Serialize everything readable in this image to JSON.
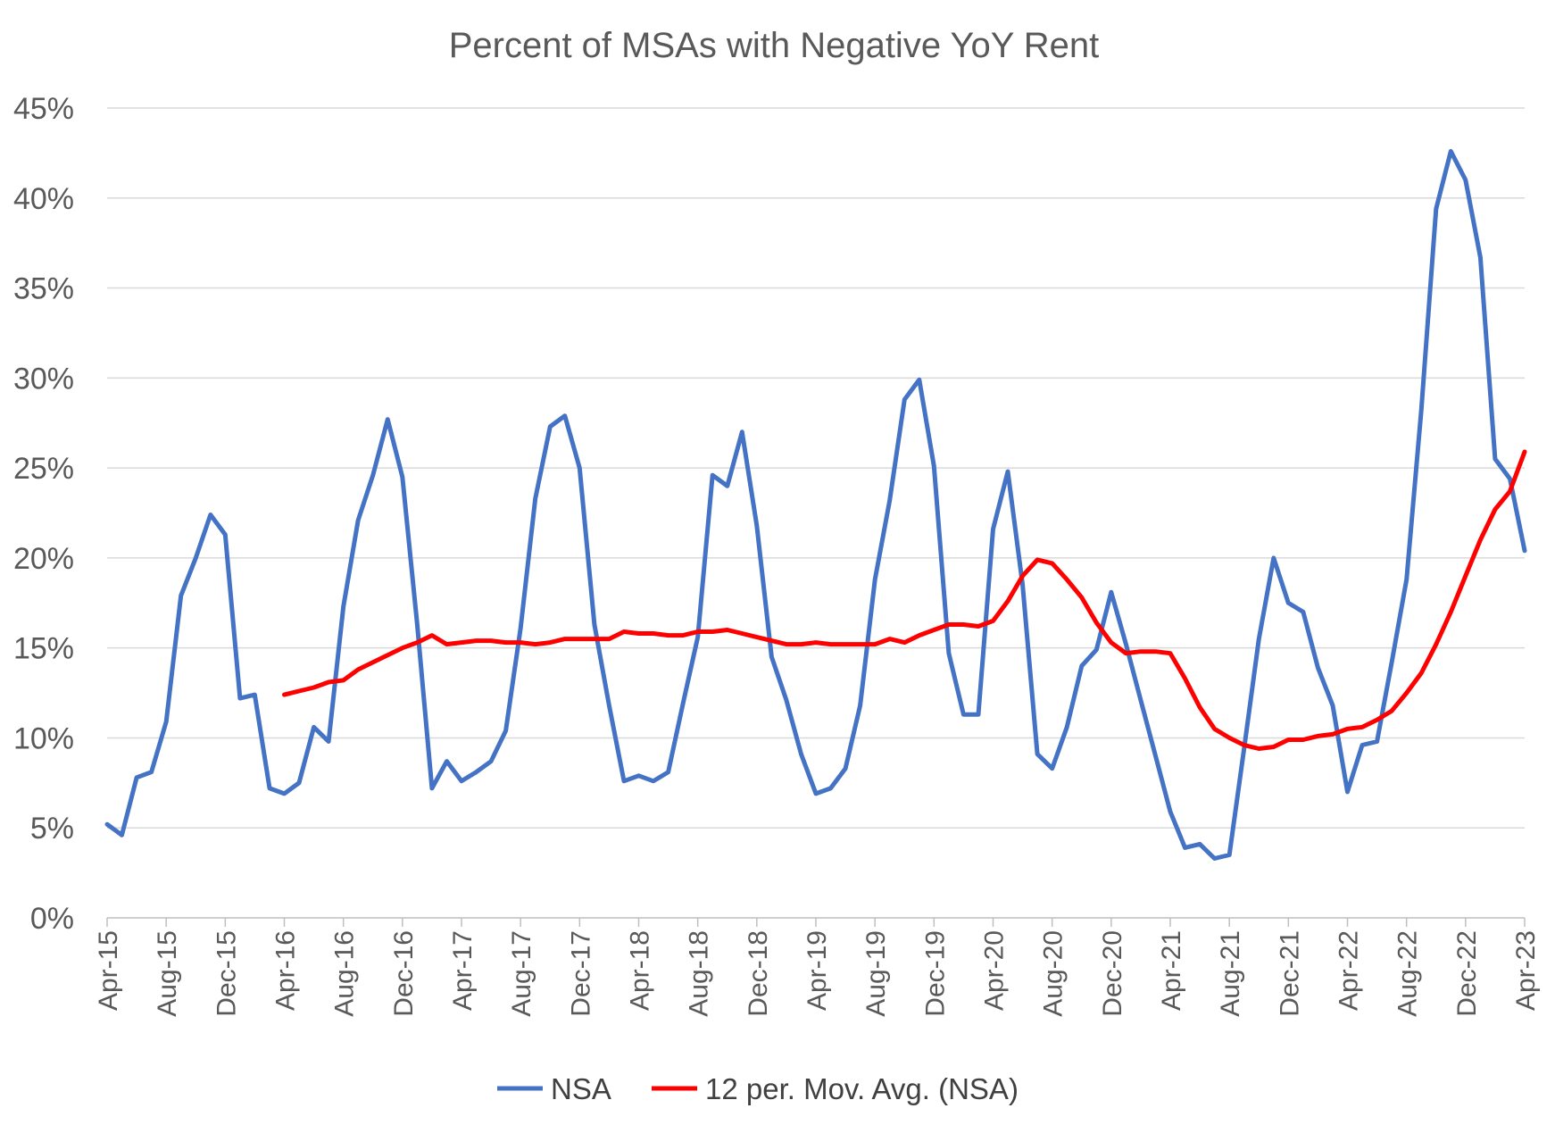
{
  "chart_data": {
    "type": "line",
    "title": "Percent of MSAs with Negative YoY Rent",
    "xlabel": "",
    "ylabel": "",
    "ylim": [
      0,
      45
    ],
    "y_ticks": [
      "0%",
      "5%",
      "10%",
      "15%",
      "20%",
      "25%",
      "30%",
      "35%",
      "40%",
      "45%"
    ],
    "x_tick_labels": [
      "Apr-15",
      "Aug-15",
      "Dec-15",
      "Apr-16",
      "Aug-16",
      "Dec-16",
      "Apr-17",
      "Aug-17",
      "Dec-17",
      "Apr-18",
      "Aug-18",
      "Dec-18",
      "Apr-19",
      "Aug-19",
      "Dec-19",
      "Apr-20",
      "Aug-20",
      "Dec-20",
      "Apr-21",
      "Aug-21",
      "Dec-21",
      "Apr-22",
      "Aug-22",
      "Dec-22",
      "Apr-23"
    ],
    "grid": true,
    "legend_position": "bottom",
    "categories": [
      "Apr-15",
      "May-15",
      "Jun-15",
      "Jul-15",
      "Aug-15",
      "Sep-15",
      "Oct-15",
      "Nov-15",
      "Dec-15",
      "Jan-16",
      "Feb-16",
      "Mar-16",
      "Apr-16",
      "May-16",
      "Jun-16",
      "Jul-16",
      "Aug-16",
      "Sep-16",
      "Oct-16",
      "Nov-16",
      "Dec-16",
      "Jan-17",
      "Feb-17",
      "Mar-17",
      "Apr-17",
      "May-17",
      "Jun-17",
      "Jul-17",
      "Aug-17",
      "Sep-17",
      "Oct-17",
      "Nov-17",
      "Dec-17",
      "Jan-18",
      "Feb-18",
      "Mar-18",
      "Apr-18",
      "May-18",
      "Jun-18",
      "Jul-18",
      "Aug-18",
      "Sep-18",
      "Oct-18",
      "Nov-18",
      "Dec-18",
      "Jan-19",
      "Feb-19",
      "Mar-19",
      "Apr-19",
      "May-19",
      "Jun-19",
      "Jul-19",
      "Aug-19",
      "Sep-19",
      "Oct-19",
      "Nov-19",
      "Dec-19",
      "Jan-20",
      "Feb-20",
      "Mar-20",
      "Apr-20",
      "May-20",
      "Jun-20",
      "Jul-20",
      "Aug-20",
      "Sep-20",
      "Oct-20",
      "Nov-20",
      "Dec-20",
      "Jan-21",
      "Feb-21",
      "Mar-21",
      "Apr-21",
      "May-21",
      "Jun-21",
      "Jul-21",
      "Aug-21",
      "Sep-21",
      "Oct-21",
      "Nov-21",
      "Dec-21",
      "Jan-22",
      "Feb-22",
      "Mar-22",
      "Apr-22",
      "May-22",
      "Jun-22",
      "Jul-22",
      "Aug-22",
      "Sep-22",
      "Oct-22",
      "Nov-22",
      "Dec-22",
      "Jan-23",
      "Feb-23",
      "Mar-23",
      "Apr-23"
    ],
    "series": [
      {
        "name": "NSA",
        "color": "#4472c4",
        "values": [
          5.2,
          4.6,
          7.8,
          8.1,
          10.9,
          17.9,
          20.0,
          22.4,
          21.3,
          12.2,
          12.4,
          7.2,
          6.9,
          7.5,
          10.6,
          9.8,
          17.3,
          22.1,
          24.6,
          27.7,
          24.5,
          16.3,
          7.2,
          8.7,
          7.6,
          8.1,
          8.7,
          10.4,
          16.1,
          23.3,
          27.3,
          27.9,
          25.0,
          16.3,
          11.8,
          7.6,
          7.9,
          7.6,
          8.1,
          11.9,
          15.6,
          24.6,
          24.0,
          27.0,
          21.8,
          14.5,
          12.1,
          9.1,
          6.9,
          7.2,
          8.3,
          11.8,
          18.8,
          23.2,
          28.8,
          29.9,
          25.1,
          14.7,
          11.3,
          11.3,
          21.6,
          24.8,
          18.5,
          9.1,
          8.3,
          10.6,
          14.0,
          14.9,
          18.1,
          15.2,
          12.1,
          9.0,
          5.9,
          3.9,
          4.1,
          3.3,
          3.5,
          9.4,
          15.5,
          20.0,
          17.5,
          17.0,
          13.9,
          11.8,
          7.0,
          9.6,
          9.8,
          14.2,
          18.8,
          28.2,
          39.4,
          42.6,
          41.0,
          36.7,
          25.5,
          24.4,
          20.4
        ]
      },
      {
        "name": "12 per. Mov. Avg. (NSA)",
        "color": "#ff0000",
        "values": [
          null,
          null,
          null,
          null,
          null,
          null,
          null,
          null,
          null,
          null,
          null,
          null,
          12.4,
          12.6,
          12.8,
          13.1,
          13.2,
          13.8,
          14.2,
          14.6,
          15.0,
          15.3,
          15.7,
          15.2,
          15.3,
          15.4,
          15.4,
          15.3,
          15.3,
          15.2,
          15.3,
          15.5,
          15.5,
          15.5,
          15.5,
          15.9,
          15.8,
          15.8,
          15.7,
          15.7,
          15.9,
          15.9,
          16.0,
          15.8,
          15.6,
          15.4,
          15.2,
          15.2,
          15.3,
          15.2,
          15.2,
          15.2,
          15.2,
          15.5,
          15.3,
          15.7,
          16.0,
          16.3,
          16.3,
          16.2,
          16.5,
          17.6,
          19.0,
          19.9,
          19.7,
          18.8,
          17.8,
          16.4,
          15.3,
          14.7,
          14.8,
          14.8,
          14.7,
          13.3,
          11.7,
          10.5,
          10.0,
          9.6,
          9.4,
          9.5,
          9.9,
          9.9,
          10.1,
          10.2,
          10.5,
          10.6,
          11.0,
          11.5,
          12.5,
          13.6,
          15.2,
          17.0,
          19.0,
          21.0,
          22.7,
          23.7,
          25.9
        ]
      }
    ]
  }
}
